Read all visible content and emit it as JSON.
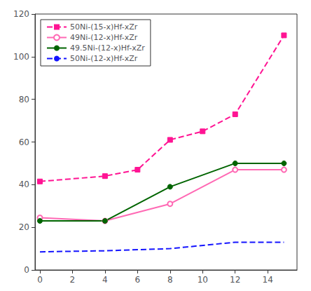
{
  "chart_data": {
    "type": "line",
    "series": [
      {
        "name": "50Ni-(15-x)Hf-xZr",
        "x": [
          0,
          4,
          6,
          8,
          10,
          12,
          15
        ],
        "values": [
          41.5,
          44,
          47,
          61,
          65,
          73,
          110
        ],
        "color": "#FF1493",
        "marker": "square",
        "line_style": "dashed"
      },
      {
        "name": "49Ni-(12-x)Hf-xZr",
        "x": [
          0,
          4,
          8,
          12,
          15
        ],
        "values": [
          24.5,
          23,
          31,
          47,
          47
        ],
        "color": "#FF69B4",
        "marker": "circle_open",
        "line_style": "solid"
      },
      {
        "name": "49.5Ni-(12-x)Hf-xZr",
        "x": [
          0,
          4,
          8,
          12,
          15
        ],
        "values": [
          23,
          23,
          39,
          50,
          50
        ],
        "color": "#006400",
        "marker": "circle",
        "line_style": "solid"
      },
      {
        "name": "50Ni-(12-x)Hf-xZr",
        "x": [
          0,
          4,
          8,
          12,
          15
        ],
        "values": [
          8.5,
          9,
          10,
          13,
          13
        ],
        "color": "#1414FF",
        "marker": "none",
        "line_style": "dashed"
      }
    ],
    "xlim": [
      -0.3,
      15.8
    ],
    "ylim": [
      0,
      120
    ],
    "xticks": [
      0,
      2,
      4,
      6,
      8,
      10,
      12,
      14
    ],
    "yticks": [
      0,
      20,
      40,
      60,
      80,
      100,
      120
    ],
    "grid": false,
    "legend": "upper left"
  }
}
